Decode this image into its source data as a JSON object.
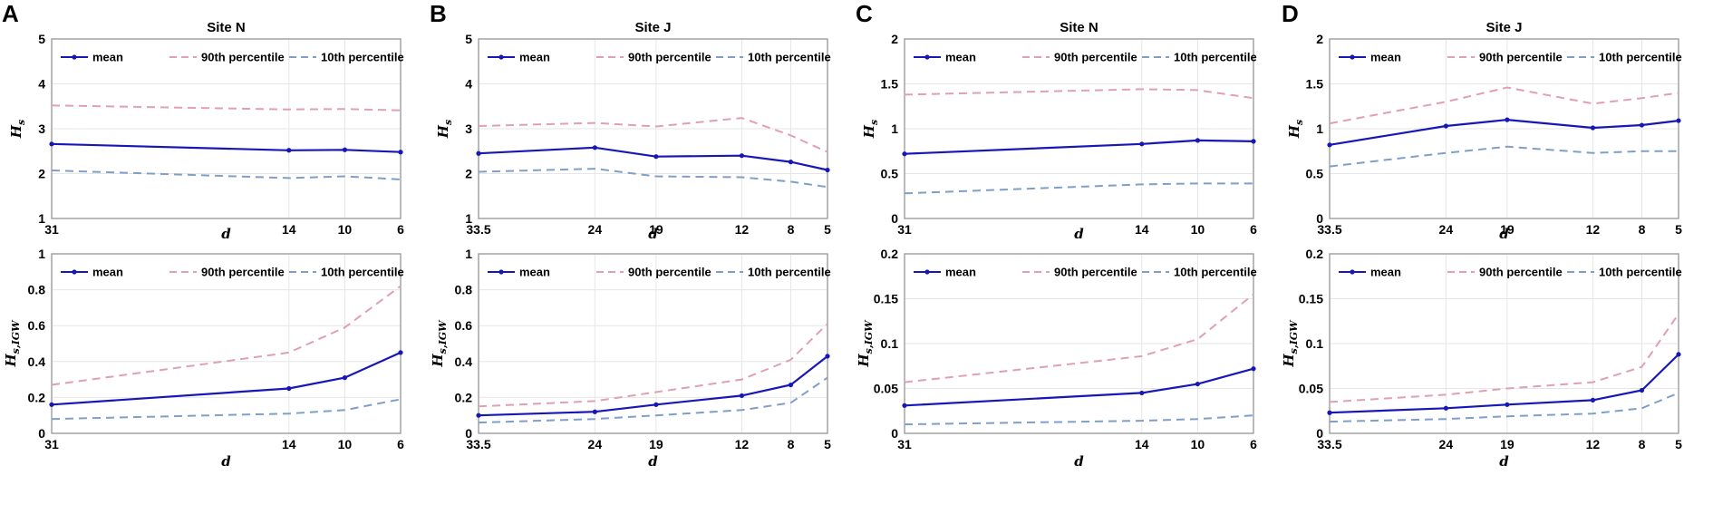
{
  "colors": {
    "mean": "#1717b8",
    "p90": "#e0a0b0",
    "p10": "#7f9fc9"
  },
  "chart_data": [
    {
      "type": "line",
      "panel": "A",
      "title": "Site N",
      "xlabel": "d",
      "ylabel": "H",
      "ylabel_sub": "s",
      "x": [
        31,
        14,
        10,
        6
      ],
      "x_tick_labels": [
        "31",
        "14",
        "10",
        "6"
      ],
      "xlim": [
        31,
        6
      ],
      "ylim": [
        1,
        5
      ],
      "y_ticks": [
        1,
        2,
        3,
        4,
        5
      ],
      "y_tick_labels": [
        "1",
        "2",
        "3",
        "4",
        "5"
      ],
      "series": [
        {
          "name": "mean",
          "key": "mean",
          "values": [
            2.66,
            2.52,
            2.53,
            2.48
          ]
        },
        {
          "name": "90th percentile",
          "key": "p90",
          "values": [
            3.52,
            3.43,
            3.44,
            3.41
          ]
        },
        {
          "name": "10th percentile",
          "key": "p10",
          "values": [
            2.07,
            1.9,
            1.94,
            1.87
          ]
        }
      ]
    },
    {
      "type": "line",
      "panel": "B",
      "title": "Site J",
      "xlabel": "d",
      "ylabel": "H",
      "ylabel_sub": "s",
      "x": [
        33.5,
        24,
        19,
        12,
        8,
        5
      ],
      "x_tick_labels": [
        "33.5",
        "24",
        "19",
        "12",
        "8",
        "5"
      ],
      "xlim": [
        33.5,
        5
      ],
      "ylim": [
        1,
        5
      ],
      "y_ticks": [
        1,
        2,
        3,
        4,
        5
      ],
      "y_tick_labels": [
        "1",
        "2",
        "3",
        "4",
        "5"
      ],
      "series": [
        {
          "name": "mean",
          "key": "mean",
          "values": [
            2.45,
            2.58,
            2.38,
            2.4,
            2.26,
            2.08
          ]
        },
        {
          "name": "90th percentile",
          "key": "p90",
          "values": [
            3.06,
            3.13,
            3.05,
            3.24,
            2.85,
            2.48
          ]
        },
        {
          "name": "10th percentile",
          "key": "p10",
          "values": [
            2.04,
            2.11,
            1.94,
            1.92,
            1.82,
            1.7
          ]
        }
      ]
    },
    {
      "type": "line",
      "panel": "C",
      "title": "Site N",
      "xlabel": "d",
      "ylabel": "H",
      "ylabel_sub": "s",
      "x": [
        31,
        14,
        10,
        6
      ],
      "x_tick_labels": [
        "31",
        "14",
        "10",
        "6"
      ],
      "xlim": [
        31,
        6
      ],
      "ylim": [
        0,
        2
      ],
      "y_ticks": [
        0,
        0.5,
        1,
        1.5,
        2
      ],
      "y_tick_labels": [
        "0",
        "0.5",
        "1",
        "1.5",
        "2"
      ],
      "series": [
        {
          "name": "mean",
          "key": "mean",
          "values": [
            0.72,
            0.83,
            0.87,
            0.86
          ]
        },
        {
          "name": "90th percentile",
          "key": "p90",
          "values": [
            1.38,
            1.44,
            1.43,
            1.34
          ]
        },
        {
          "name": "10th percentile",
          "key": "p10",
          "values": [
            0.28,
            0.38,
            0.39,
            0.39
          ]
        }
      ]
    },
    {
      "type": "line",
      "panel": "D",
      "title": "Site J",
      "xlabel": "d",
      "ylabel": "H",
      "ylabel_sub": "s",
      "x": [
        33.5,
        24,
        19,
        12,
        8,
        5
      ],
      "x_tick_labels": [
        "33.5",
        "24",
        "19",
        "12",
        "8",
        "5"
      ],
      "xlim": [
        33.5,
        5
      ],
      "ylim": [
        0,
        2
      ],
      "y_ticks": [
        0,
        0.5,
        1,
        1.5,
        2
      ],
      "y_tick_labels": [
        "0",
        "0.5",
        "1",
        "1.5",
        "2"
      ],
      "series": [
        {
          "name": "mean",
          "key": "mean",
          "values": [
            0.82,
            1.03,
            1.1,
            1.01,
            1.04,
            1.09
          ]
        },
        {
          "name": "90th percentile",
          "key": "p90",
          "values": [
            1.06,
            1.3,
            1.46,
            1.28,
            1.34,
            1.4
          ]
        },
        {
          "name": "10th percentile",
          "key": "p10",
          "values": [
            0.58,
            0.73,
            0.8,
            0.73,
            0.75,
            0.75
          ]
        }
      ]
    },
    {
      "type": "line",
      "panel": "A-bottom",
      "title": "",
      "xlabel": "d",
      "ylabel": "H",
      "ylabel_sub": "s,IGW",
      "x": [
        31,
        14,
        10,
        6
      ],
      "x_tick_labels": [
        "31",
        "14",
        "10",
        "6"
      ],
      "xlim": [
        31,
        6
      ],
      "ylim": [
        0,
        1
      ],
      "y_ticks": [
        0,
        0.2,
        0.4,
        0.6,
        0.8,
        1
      ],
      "y_tick_labels": [
        "0",
        "0.2",
        "0.4",
        "0.6",
        "0.8",
        "1"
      ],
      "series": [
        {
          "name": "mean",
          "key": "mean",
          "values": [
            0.16,
            0.25,
            0.31,
            0.45
          ]
        },
        {
          "name": "90th percentile",
          "key": "p90",
          "values": [
            0.27,
            0.45,
            0.59,
            0.82
          ]
        },
        {
          "name": "10th percentile",
          "key": "p10",
          "values": [
            0.08,
            0.11,
            0.13,
            0.19
          ]
        }
      ]
    },
    {
      "type": "line",
      "panel": "B-bottom",
      "title": "",
      "xlabel": "d",
      "ylabel": "H",
      "ylabel_sub": "s,IGW",
      "x": [
        33.5,
        24,
        19,
        12,
        8,
        5
      ],
      "x_tick_labels": [
        "33.5",
        "24",
        "19",
        "12",
        "8",
        "5"
      ],
      "xlim": [
        33.5,
        5
      ],
      "ylim": [
        0,
        1
      ],
      "y_ticks": [
        0,
        0.2,
        0.4,
        0.6,
        0.8,
        1
      ],
      "y_tick_labels": [
        "0",
        "0.2",
        "0.4",
        "0.6",
        "0.8",
        "1"
      ],
      "series": [
        {
          "name": "mean",
          "key": "mean",
          "values": [
            0.1,
            0.12,
            0.16,
            0.21,
            0.27,
            0.43
          ]
        },
        {
          "name": "90th percentile",
          "key": "p90",
          "values": [
            0.15,
            0.18,
            0.23,
            0.3,
            0.41,
            0.61
          ]
        },
        {
          "name": "10th percentile",
          "key": "p10",
          "values": [
            0.06,
            0.08,
            0.1,
            0.13,
            0.17,
            0.31
          ]
        }
      ]
    },
    {
      "type": "line",
      "panel": "C-bottom",
      "title": "",
      "xlabel": "d",
      "ylabel": "H",
      "ylabel_sub": "s,IGW",
      "x": [
        31,
        14,
        10,
        6
      ],
      "x_tick_labels": [
        "31",
        "14",
        "10",
        "6"
      ],
      "xlim": [
        31,
        6
      ],
      "ylim": [
        0,
        0.2
      ],
      "y_ticks": [
        0,
        0.05,
        0.1,
        0.15,
        0.2
      ],
      "y_tick_labels": [
        "0",
        "0.05",
        "0.1",
        "0.15",
        "0.2"
      ],
      "series": [
        {
          "name": "mean",
          "key": "mean",
          "values": [
            0.031,
            0.045,
            0.055,
            0.072
          ]
        },
        {
          "name": "90th percentile",
          "key": "p90",
          "values": [
            0.057,
            0.086,
            0.105,
            0.155
          ]
        },
        {
          "name": "10th percentile",
          "key": "p10",
          "values": [
            0.01,
            0.014,
            0.016,
            0.02
          ]
        }
      ]
    },
    {
      "type": "line",
      "panel": "D-bottom",
      "title": "",
      "xlabel": "d",
      "ylabel": "H",
      "ylabel_sub": "s,IGW",
      "x": [
        33.5,
        24,
        19,
        12,
        8,
        5
      ],
      "x_tick_labels": [
        "33.5",
        "24",
        "19",
        "12",
        "8",
        "5"
      ],
      "xlim": [
        33.5,
        5
      ],
      "ylim": [
        0,
        0.2
      ],
      "y_ticks": [
        0,
        0.05,
        0.1,
        0.15,
        0.2
      ],
      "y_tick_labels": [
        "0",
        "0.05",
        "0.1",
        "0.15",
        "0.2"
      ],
      "series": [
        {
          "name": "mean",
          "key": "mean",
          "values": [
            0.023,
            0.028,
            0.032,
            0.037,
            0.048,
            0.088
          ]
        },
        {
          "name": "90th percentile",
          "key": "p90",
          "values": [
            0.035,
            0.043,
            0.05,
            0.057,
            0.074,
            0.133
          ]
        },
        {
          "name": "10th percentile",
          "key": "p10",
          "values": [
            0.013,
            0.016,
            0.019,
            0.022,
            0.028,
            0.045
          ]
        }
      ]
    }
  ]
}
